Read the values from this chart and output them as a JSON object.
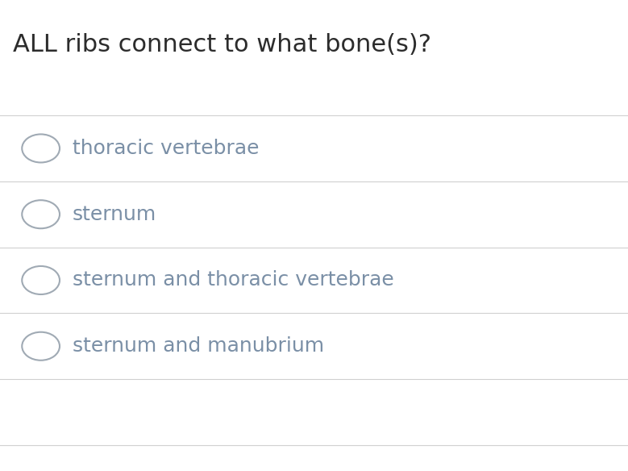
{
  "question": "ALL ribs connect to what bone(s)?",
  "options": [
    "thoracic vertebrae",
    "sternum",
    "sternum and thoracic vertebrae",
    "sternum and manubrium"
  ],
  "background_color": "#ffffff",
  "question_color": "#2c2c2c",
  "option_color": "#7a8fa6",
  "line_color": "#d0d0d0",
  "circle_color": "#a0aab4",
  "question_fontsize": 22,
  "option_fontsize": 18,
  "figure_width": 7.79,
  "figure_height": 5.84
}
